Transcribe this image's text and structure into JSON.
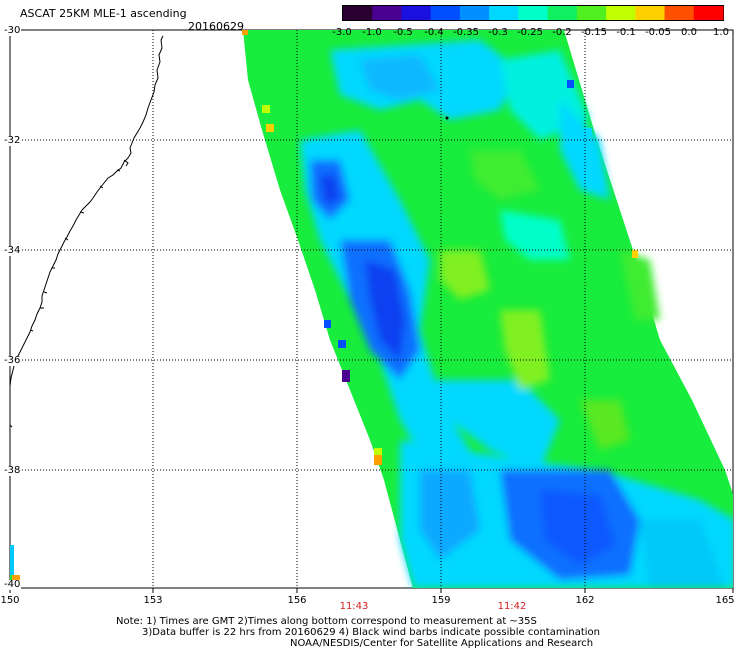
{
  "header": {
    "title": "ASCAT 25KM MLE-1 ascending",
    "date": "20160629"
  },
  "colorbar": {
    "labels": [
      "-3.0",
      "-1.0",
      "-0.5",
      "-0.4",
      "-0.35",
      "-0.3",
      "-0.25",
      "-0.2",
      "-0.15",
      "-0.1",
      "-0.05",
      "0.0",
      "1.0"
    ],
    "colors": [
      "#2a0030",
      "#4a0090",
      "#1a10e0",
      "#0050ff",
      "#0090ff",
      "#00d8ff",
      "#00ffc8",
      "#10f060",
      "#50f020",
      "#c0ff00",
      "#ffd000",
      "#ff5000",
      "#ff0000"
    ]
  },
  "axes": {
    "lat_labels": [
      "-30",
      "-32",
      "-34",
      "-36",
      "-38",
      "-40"
    ],
    "lon_labels": [
      "150",
      "153",
      "156",
      "159",
      "162",
      "165"
    ],
    "times": [
      "11:43",
      "11:42"
    ]
  },
  "notes": {
    "line1": "Note: 1) Times are GMT 2)Times along bottom correspond to measurement at ~35S",
    "line2": "3)Data buffer is 22 hrs from 20160629 4) Black wind barbs indicate possible contamination",
    "line3": "NOAA/NESDIS/Center for Satellite Applications and Research"
  }
}
